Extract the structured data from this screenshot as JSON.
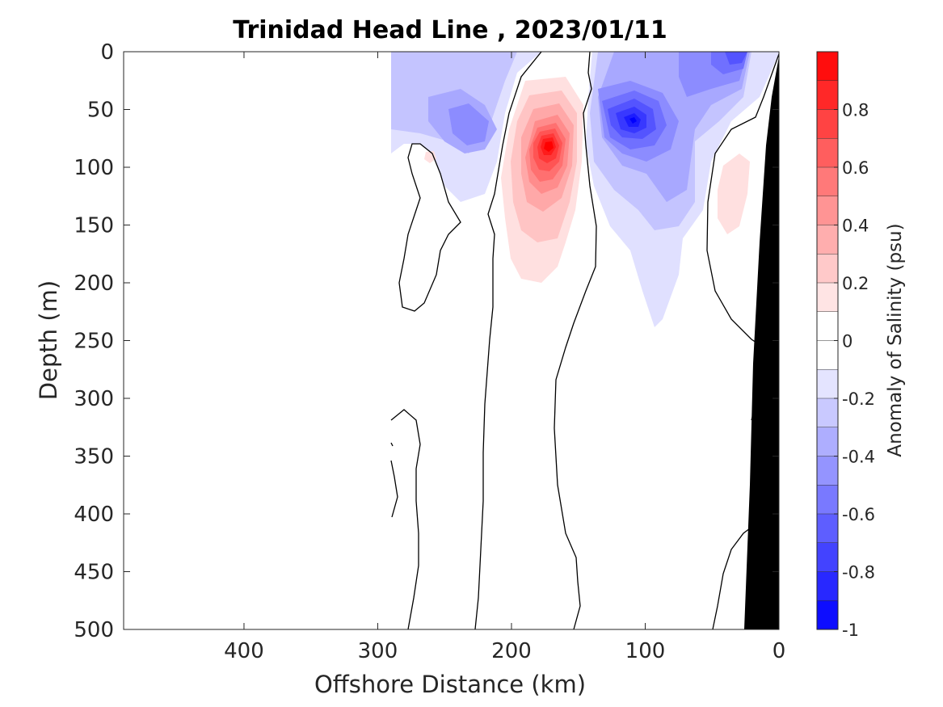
{
  "chart_data": {
    "type": "heatmap",
    "title": "Trinidad Head Line , 2023/01/11",
    "xlabel": "Offshore Distance (km)",
    "ylabel": "Depth (m)",
    "xlim": [
      490,
      0
    ],
    "ylim": [
      500,
      0
    ],
    "x_reversed": true,
    "y_reversed": true,
    "x_ticks": [
      400,
      300,
      200,
      100,
      0
    ],
    "y_ticks": [
      0,
      50,
      100,
      150,
      200,
      250,
      300,
      350,
      400,
      450,
      500
    ],
    "colorbar": {
      "label": "Anomaly of Salinity (psu)",
      "range": [
        -1,
        1
      ],
      "step": 0.1,
      "ticks": [
        0.8,
        0.6,
        0.4,
        0.2,
        0,
        -0.2,
        -0.4,
        -0.6,
        -0.8,
        -1
      ],
      "positive_color": "#ff0000",
      "negative_color": "#0000ff",
      "zero_color": "#ffffff"
    },
    "data_extent_km": [
      0,
      290
    ],
    "features": [
      {
        "type": "max",
        "x_km": 172,
        "depth_m": 82,
        "value": 0.9
      },
      {
        "type": "min",
        "x_km": 112,
        "depth_m": 62,
        "value": -0.85
      },
      {
        "type": "min",
        "x_km": 30,
        "depth_m": 5,
        "value": -0.7
      },
      {
        "type": "min",
        "x_km": 240,
        "depth_m": 65,
        "value": -0.45
      },
      {
        "type": "max",
        "x_km": 30,
        "depth_m": 120,
        "value": 0.15
      }
    ],
    "bathymetry_color": "#000000"
  }
}
